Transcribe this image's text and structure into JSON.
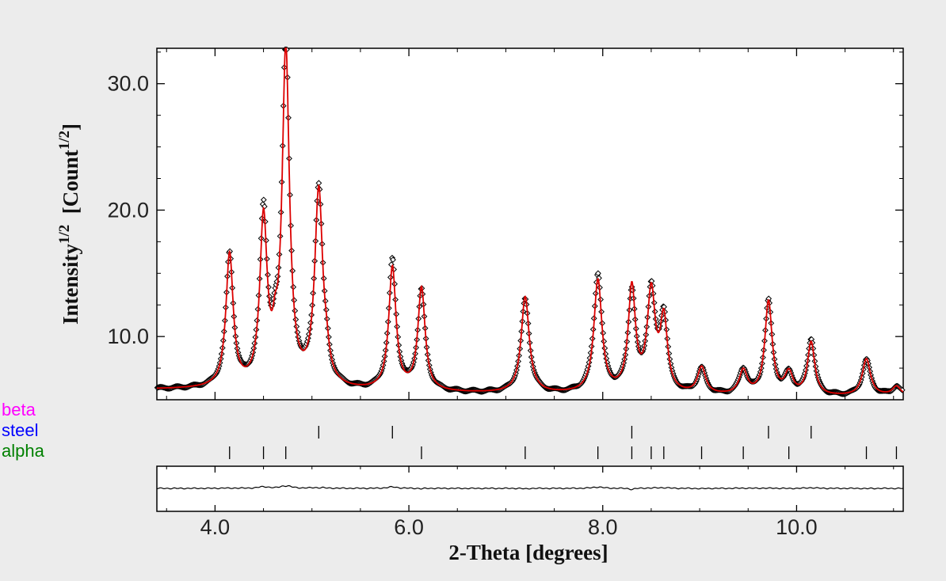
{
  "chart_data": {
    "type": "line",
    "xlabel": "2-Theta [degrees]",
    "ylabel": "Intensity^1/2 [Count^1/2]",
    "ylabel_parts": {
      "base1": "Intensity",
      "sup1": "1/2",
      "mid": "  [Count",
      "sup2": "1/2",
      "end": "]"
    },
    "xlim": [
      3.4,
      11.1
    ],
    "ylim": [
      5.0,
      32.8
    ],
    "x_ticks": [
      4.0,
      6.0,
      8.0,
      10.0
    ],
    "x_tick_labels": [
      "4.0",
      "6.0",
      "8.0",
      "10.0"
    ],
    "y_ticks": [
      10.0,
      20.0,
      30.0
    ],
    "y_tick_labels": [
      "10.0",
      "20.0",
      "30.0"
    ],
    "grid": false,
    "series": [
      {
        "kind": "observed",
        "marker": "diamond-open",
        "color": "#000000",
        "background": [
          [
            3.4,
            5.8
          ],
          [
            4.0,
            5.8
          ],
          [
            6.5,
            5.5
          ],
          [
            10.0,
            5.2
          ],
          [
            11.1,
            5.3
          ]
        ],
        "peaks": [
          {
            "x": 4.15,
            "h": 10.5,
            "w": 0.045
          },
          {
            "x": 4.5,
            "h": 13.0,
            "w": 0.045
          },
          {
            "x": 4.62,
            "h": 2.0,
            "w": 0.03
          },
          {
            "x": 4.73,
            "h": 26.5,
            "w": 0.045
          },
          {
            "x": 5.07,
            "h": 15.5,
            "w": 0.05
          },
          {
            "x": 5.15,
            "h": 1.2,
            "w": 0.03
          },
          {
            "x": 5.83,
            "h": 9.7,
            "w": 0.045
          },
          {
            "x": 6.13,
            "h": 8.1,
            "w": 0.045
          },
          {
            "x": 7.2,
            "h": 7.6,
            "w": 0.05
          },
          {
            "x": 7.95,
            "h": 8.9,
            "w": 0.05
          },
          {
            "x": 8.3,
            "h": 8.2,
            "w": 0.045
          },
          {
            "x": 8.5,
            "h": 7.8,
            "w": 0.05
          },
          {
            "x": 8.63,
            "h": 5.6,
            "w": 0.045
          },
          {
            "x": 9.02,
            "h": 2.1,
            "w": 0.05
          },
          {
            "x": 9.45,
            "h": 1.9,
            "w": 0.05
          },
          {
            "x": 9.71,
            "h": 7.4,
            "w": 0.045
          },
          {
            "x": 9.92,
            "h": 1.7,
            "w": 0.05
          },
          {
            "x": 10.15,
            "h": 4.2,
            "w": 0.045
          },
          {
            "x": 10.72,
            "h": 2.9,
            "w": 0.05
          },
          {
            "x": 11.03,
            "h": 0.7,
            "w": 0.05
          }
        ]
      },
      {
        "kind": "calculated",
        "color": "#dd0000"
      },
      {
        "kind": "difference",
        "color": "#000000"
      }
    ],
    "reflection_markers": [
      {
        "name": "beta",
        "color": "#ff00ff",
        "positions": []
      },
      {
        "name": "steel",
        "color": "#0000ff",
        "positions": [
          5.07,
          5.83,
          8.3,
          9.71,
          10.15
        ]
      },
      {
        "name": "alpha",
        "color": "#008000",
        "positions": [
          4.15,
          4.5,
          4.73,
          6.13,
          7.2,
          7.95,
          8.3,
          8.5,
          8.63,
          9.02,
          9.45,
          9.92,
          10.72,
          11.03
        ]
      }
    ]
  }
}
